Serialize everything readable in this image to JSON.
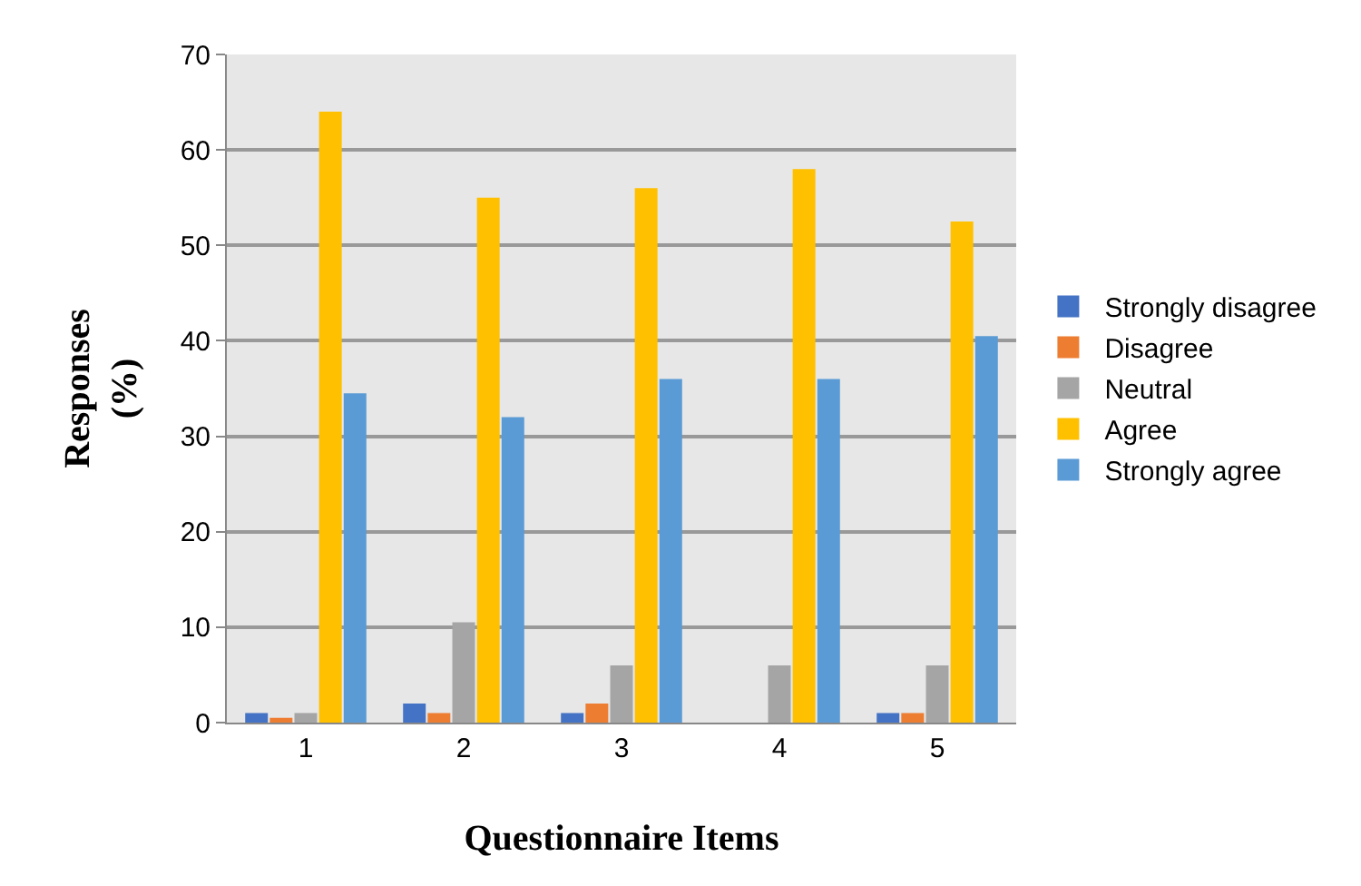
{
  "chart_data": {
    "type": "bar",
    "xlabel": "Questionnaire Items",
    "ylabel": "Responses\n(%)",
    "categories": [
      "1",
      "2",
      "3",
      "4",
      "5"
    ],
    "series": [
      {
        "name": "Strongly disagree",
        "color": "#4472c4",
        "values": [
          1,
          2,
          1,
          0,
          1
        ]
      },
      {
        "name": "Disagree",
        "color": "#ed7d31",
        "values": [
          0.5,
          1,
          2,
          0,
          1
        ]
      },
      {
        "name": "Neutral",
        "color": "#a5a5a5",
        "values": [
          1,
          10.5,
          6,
          6,
          6
        ]
      },
      {
        "name": "Agree",
        "color": "#ffc000",
        "values": [
          64,
          55,
          56,
          58,
          52.5
        ]
      },
      {
        "name": "Strongly agree",
        "color": "#5b9bd5",
        "values": [
          34.5,
          32,
          36,
          36,
          40.5
        ]
      }
    ],
    "ylim": [
      0,
      70
    ],
    "yticks": [
      0,
      10,
      20,
      30,
      40,
      50,
      60,
      70
    ],
    "grid": "y",
    "legend": "right"
  }
}
